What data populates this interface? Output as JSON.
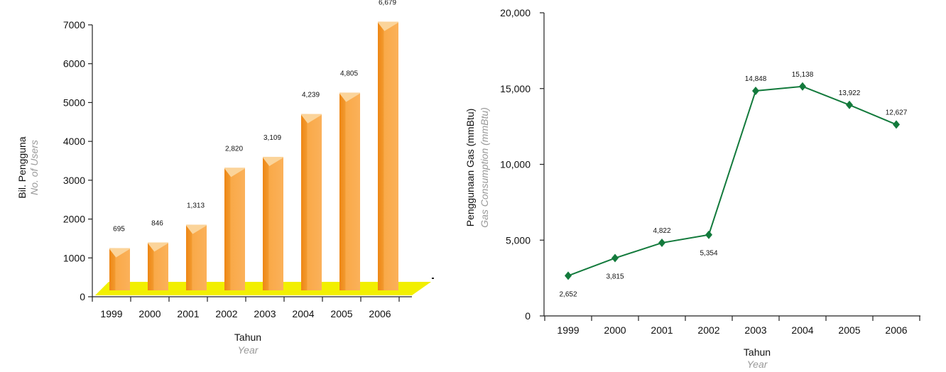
{
  "chart_data": [
    {
      "type": "bar",
      "categories": [
        "1999",
        "2000",
        "2001",
        "2002",
        "2003",
        "2004",
        "2005",
        "2006"
      ],
      "values": [
        695,
        846,
        1313,
        2820,
        3109,
        4239,
        4805,
        6679
      ],
      "value_labels": [
        "695",
        "846",
        "1,313",
        "2,820",
        "3,109",
        "4,239",
        "4,805",
        "6,679"
      ],
      "y_ticks": [
        "0",
        "1000",
        "2000",
        "3000",
        "4000",
        "5000",
        "6000",
        "7000"
      ],
      "ylim": [
        0,
        7000
      ],
      "xlabel": "Tahun",
      "xlabel_sub": "Year",
      "ylabel": "Bil. Pengguna",
      "ylabel_sub": "No. of Users",
      "bar_color": "#f7a240",
      "floor_color": "#f2ef00",
      "grid": false
    },
    {
      "type": "line",
      "categories": [
        "1999",
        "2000",
        "2001",
        "2002",
        "2003",
        "2004",
        "2005",
        "2006"
      ],
      "values": [
        2652,
        3815,
        4822,
        5354,
        14848,
        15138,
        13922,
        12627
      ],
      "value_labels": [
        "2,652",
        "3,815",
        "4,822",
        "5,354",
        "14,848",
        "15,138",
        "13,922",
        "12,627"
      ],
      "label_positions": [
        "below",
        "below",
        "above",
        "below",
        "above",
        "above",
        "above",
        "above"
      ],
      "y_ticks": [
        "0",
        "5,000",
        "10,000",
        "15,000",
        "20,000"
      ],
      "ylim": [
        0,
        20000
      ],
      "xlabel": "Tahun",
      "xlabel_sub": "Year",
      "ylabel": "Penggunaan Gas (mmBtu)",
      "ylabel_sub": "Gas Consumption (mmBtu)",
      "line_color": "#137a3c",
      "grid": false
    }
  ]
}
